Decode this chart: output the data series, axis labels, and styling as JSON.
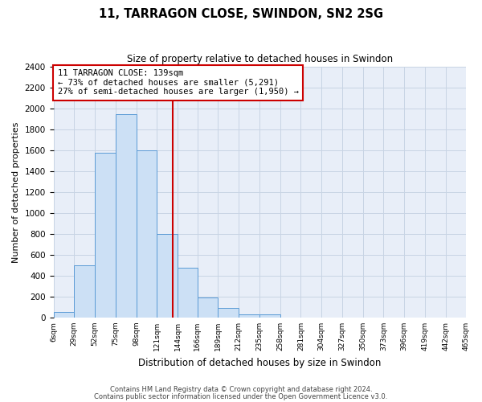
{
  "title": "11, TARRAGON CLOSE, SWINDON, SN2 2SG",
  "subtitle": "Size of property relative to detached houses in Swindon",
  "xlabel": "Distribution of detached houses by size in Swindon",
  "ylabel": "Number of detached properties",
  "bin_edges": [
    6,
    29,
    52,
    75,
    98,
    121,
    144,
    166,
    189,
    212,
    235,
    258,
    281,
    304,
    327,
    350,
    373,
    396,
    419,
    442,
    465
  ],
  "bar_heights": [
    50,
    500,
    1580,
    1950,
    1600,
    800,
    480,
    190,
    90,
    30,
    30,
    0,
    0,
    0,
    0,
    0,
    0,
    0,
    0,
    0
  ],
  "bar_facecolor": "#cce0f5",
  "bar_edgecolor": "#5b9bd5",
  "grid_color": "#c8d4e4",
  "background_color": "#e8eef8",
  "vline_x": 139,
  "vline_color": "#cc0000",
  "annotation_box_text": "11 TARRAGON CLOSE: 139sqm\n← 73% of detached houses are smaller (5,291)\n27% of semi-detached houses are larger (1,950) →",
  "annotation_box_color": "#cc0000",
  "ylim": [
    0,
    2400
  ],
  "yticks": [
    0,
    200,
    400,
    600,
    800,
    1000,
    1200,
    1400,
    1600,
    1800,
    2000,
    2200,
    2400
  ],
  "xtick_labels": [
    "6sqm",
    "29sqm",
    "52sqm",
    "75sqm",
    "98sqm",
    "121sqm",
    "144sqm",
    "166sqm",
    "189sqm",
    "212sqm",
    "235sqm",
    "258sqm",
    "281sqm",
    "304sqm",
    "327sqm",
    "350sqm",
    "373sqm",
    "396sqm",
    "419sqm",
    "442sqm",
    "465sqm"
  ],
  "footer_line1": "Contains HM Land Registry data © Crown copyright and database right 2024.",
  "footer_line2": "Contains public sector information licensed under the Open Government Licence v3.0."
}
